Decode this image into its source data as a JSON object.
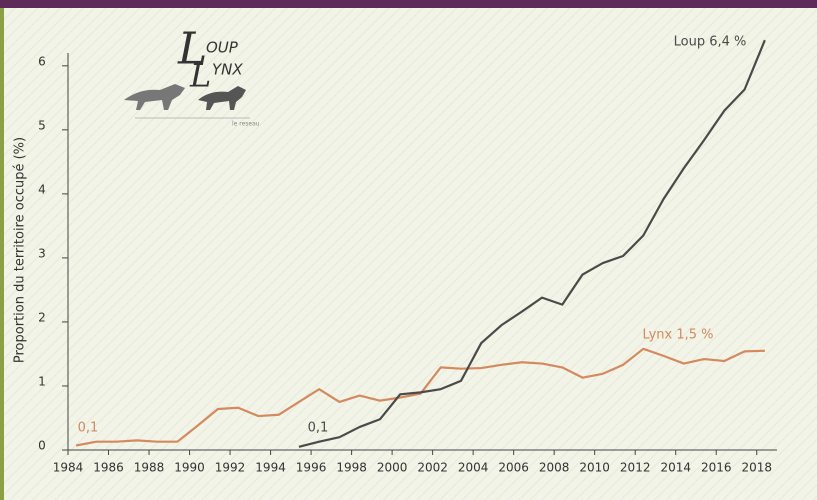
{
  "chart_data": {
    "type": "line",
    "ylabel": "Proportion du territoire occupé (%)",
    "x": [
      1984.4,
      1985.4,
      1986.4,
      1987.4,
      1988.4,
      1989.4,
      1990.4,
      1991.4,
      1992.4,
      1993.4,
      1994.4,
      1995.4,
      1996.4,
      1997.4,
      1998.4,
      1999.4,
      2000.4,
      2001.4,
      2002.4,
      2003.4,
      2004.4,
      2005.4,
      2006.4,
      2007.4,
      2008.4,
      2009.4,
      2010.4,
      2011.4,
      2012.4,
      2013.4,
      2014.4,
      2015.4,
      2016.4,
      2017.4,
      2018.4
    ],
    "series": [
      {
        "name": "Lynx",
        "color": "#d4895f",
        "values": [
          0.07,
          0.13,
          0.13,
          0.15,
          0.13,
          0.13,
          0.38,
          0.64,
          0.66,
          0.53,
          0.55,
          0.75,
          0.95,
          0.75,
          0.85,
          0.77,
          0.82,
          0.88,
          1.29,
          1.27,
          1.28,
          1.33,
          1.37,
          1.35,
          1.29,
          1.13,
          1.19,
          1.33,
          1.58,
          1.47,
          1.35,
          1.42,
          1.39,
          1.54,
          1.55
        ]
      },
      {
        "name": "Loup",
        "color": "#4a4a4a",
        "values": [
          null,
          null,
          null,
          null,
          null,
          null,
          null,
          null,
          null,
          null,
          null,
          0.05,
          0.13,
          0.2,
          0.36,
          0.48,
          0.87,
          0.9,
          0.95,
          1.08,
          1.67,
          1.95,
          2.16,
          2.38,
          2.27,
          2.74,
          2.92,
          3.03,
          3.35,
          3.92,
          4.4,
          4.84,
          5.3,
          5.63,
          6.4
        ]
      }
    ],
    "annotations": [
      "Loup 6,4 %",
      "Lynx 1,5 %",
      "0,1",
      "0,1"
    ],
    "xlim": [
      1984,
      2019
    ],
    "xticks": [
      1984,
      1986,
      1988,
      1990,
      1992,
      1994,
      1996,
      1998,
      2000,
      2002,
      2004,
      2006,
      2008,
      2010,
      2012,
      2014,
      2016,
      2018
    ],
    "ylim": [
      0,
      6.2
    ],
    "yticks": [
      0,
      1,
      2,
      3,
      4,
      5,
      6
    ],
    "grid": false
  },
  "logo": {
    "initial_top": "L",
    "top": "OUP",
    "initial_bottom": "L",
    "bottom": "YNX",
    "caption": "le reseau"
  }
}
